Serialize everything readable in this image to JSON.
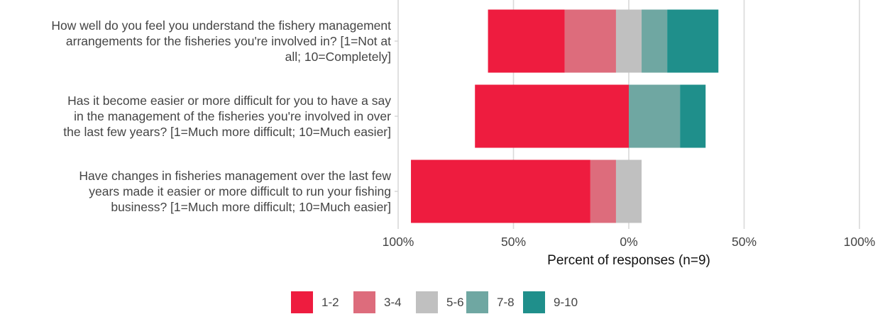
{
  "chart_data": {
    "type": "bar",
    "orientation": "horizontal",
    "stacking": "diverging",
    "xlabel": "Percent of responses (n=9)",
    "xlim": [
      -100,
      100
    ],
    "xticks": [
      {
        "value": -100,
        "label": "100%"
      },
      {
        "value": -50,
        "label": "50%"
      },
      {
        "value": 0,
        "label": "0%"
      },
      {
        "value": 50,
        "label": "50%"
      },
      {
        "value": 100,
        "label": "100%"
      }
    ],
    "grid": true,
    "legend_position": "bottom",
    "legend": [
      {
        "label": "1-2",
        "color": "#ee1c3f"
      },
      {
        "label": "3-4",
        "color": "#dd6c7c"
      },
      {
        "label": "5-6",
        "color": "#c0c0c0"
      },
      {
        "label": "7-8",
        "color": "#6fa7a2"
      },
      {
        "label": "9-10",
        "color": "#1f8f8b"
      }
    ],
    "categories": [
      {
        "label_lines": [
          "How well do you feel you understand the fishery management",
          "arrangements for the fisheries you're involved in? [1=Not at",
          "all; 10=Completely]"
        ],
        "values": [
          33.3,
          22.2,
          11.1,
          11.1,
          22.2
        ]
      },
      {
        "label_lines": [
          "Has it become easier or more difficult for you to have a say",
          "in the management of the fisheries you're involved in over",
          "the last few years? [1=Much more difficult; 10=Much easier]"
        ],
        "values": [
          66.7,
          0,
          0,
          22.2,
          11.1
        ]
      },
      {
        "label_lines": [
          "Have changes in fisheries management over the last few",
          "years made it easier or more difficult to run your fishing",
          "business? [1=Much more difficult; 10=Much easier]"
        ],
        "values": [
          77.8,
          11.1,
          11.1,
          0,
          0
        ]
      }
    ]
  }
}
